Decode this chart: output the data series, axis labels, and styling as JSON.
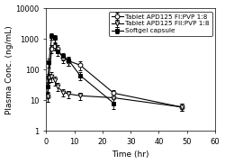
{
  "title": "",
  "xlabel": "Time (hr)",
  "ylabel": "Plasma Conc. (ng/mL)",
  "xlim": [
    0,
    60
  ],
  "ylim_log": [
    1,
    10000
  ],
  "yticks": [
    1,
    10,
    100,
    1000,
    10000
  ],
  "ytick_labels": [
    "1",
    "10",
    "100",
    "1000",
    "10000"
  ],
  "xticks": [
    0,
    10,
    20,
    30,
    40,
    50,
    60
  ],
  "series1_label": "Tablet APD125 FI:PVP 1:8",
  "series1_x": [
    0.5,
    1,
    2,
    3,
    4,
    6,
    8,
    12,
    24,
    48
  ],
  "series1_y": [
    13,
    55,
    480,
    580,
    470,
    240,
    190,
    140,
    17,
    6
  ],
  "series1_yerr": [
    4,
    15,
    130,
    160,
    140,
    75,
    55,
    45,
    5,
    1.5
  ],
  "series1_marker": "o",
  "series1_mfc": "white",
  "series1_color": "black",
  "series2_label": "Tablet APD125 FII:PVP 1:8",
  "series2_x": [
    0.5,
    1,
    2,
    3,
    4,
    6,
    8,
    12,
    24,
    48
  ],
  "series2_y": [
    13,
    55,
    60,
    45,
    28,
    18,
    16,
    14,
    12,
    6
  ],
  "series2_yerr": [
    4,
    18,
    20,
    15,
    8,
    5,
    4,
    4,
    3,
    1.5
  ],
  "series2_marker": "v",
  "series2_mfc": "white",
  "series2_color": "black",
  "series3_label": "Softgel capsule",
  "series3_x": [
    0.5,
    1,
    2,
    3,
    4,
    6,
    8,
    12,
    24
  ],
  "series3_y": [
    28,
    170,
    1200,
    1050,
    380,
    270,
    200,
    65,
    8
  ],
  "series3_yerr": [
    9,
    55,
    280,
    260,
    110,
    75,
    65,
    20,
    3
  ],
  "series3_marker": "s",
  "series3_mfc": "black",
  "series3_color": "black",
  "legend_fontsize": 5.2,
  "axis_fontsize": 6.5,
  "tick_fontsize": 6,
  "background_color": "#ffffff",
  "line_color": "black",
  "markersize": 3.5,
  "linewidth": 0.8,
  "capsize": 1.5,
  "elinewidth": 0.6
}
